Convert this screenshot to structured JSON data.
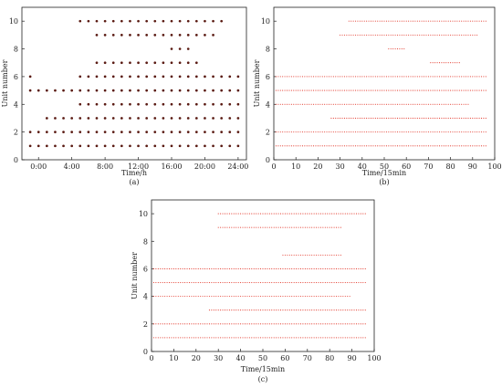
{
  "colors": {
    "dot_dark": "#5a1a12",
    "dot_red": "#e02a1c",
    "dot_light": "#ff8a80",
    "axis": "#222222",
    "blue_dot": "#6fb3ff"
  },
  "chart_data": [
    {
      "type": "scatter",
      "panel_label": "(a)",
      "xlabel": "Time/h",
      "ylabel": "Unit number",
      "xticks": [
        "0:00",
        "4:00",
        "8:00",
        "12:00",
        "16:00",
        "20:00",
        "24:00"
      ],
      "xlim": [
        -2,
        25
      ],
      "yticks": [
        0,
        2,
        4,
        6,
        8,
        10
      ],
      "ylim": [
        0,
        11
      ],
      "series": [
        {
          "unit": 1,
          "on": [
            [
              -1,
              24
            ]
          ]
        },
        {
          "unit": 2,
          "on": [
            [
              -1,
              24
            ]
          ]
        },
        {
          "unit": 3,
          "on": [
            [
              1,
              24
            ]
          ]
        },
        {
          "unit": 4,
          "on": [
            [
              5,
              24
            ]
          ]
        },
        {
          "unit": 5,
          "on": [
            [
              -1,
              24
            ]
          ]
        },
        {
          "unit": 6,
          "on": [
            [
              -1,
              -1
            ],
            [
              5,
              24
            ]
          ]
        },
        {
          "unit": 7,
          "on": [
            [
              7,
              19
            ]
          ]
        },
        {
          "unit": 8,
          "on": [
            [
              16,
              18
            ]
          ]
        },
        {
          "unit": 9,
          "on": [
            [
              7,
              21
            ]
          ]
        },
        {
          "unit": 10,
          "on": [
            [
              5,
              22
            ]
          ]
        }
      ]
    },
    {
      "type": "scatter",
      "panel_label": "(b)",
      "xlabel": "Time/15min",
      "ylabel": "Unit number",
      "xticks": [
        0,
        10,
        20,
        30,
        40,
        50,
        60,
        70,
        80,
        90,
        100
      ],
      "xlim": [
        0,
        100
      ],
      "yticks": [
        0,
        2,
        4,
        6,
        8,
        10
      ],
      "ylim": [
        0,
        11
      ],
      "series": [
        {
          "unit": 1,
          "on": [
            [
              1,
              96
            ]
          ]
        },
        {
          "unit": 2,
          "on": [
            [
              1,
              96
            ]
          ]
        },
        {
          "unit": 3,
          "on": [
            [
              26,
              96
            ]
          ]
        },
        {
          "unit": 4,
          "on": [
            [
              1,
              88
            ]
          ]
        },
        {
          "unit": 5,
          "on": [
            [
              1,
              96
            ]
          ]
        },
        {
          "unit": 6,
          "on": [
            [
              1,
              96
            ]
          ]
        },
        {
          "unit": 7,
          "on": [
            [
              71,
              84
            ]
          ]
        },
        {
          "unit": 8,
          "on": [
            [
              52,
              59
            ]
          ]
        },
        {
          "unit": 9,
          "on": [
            [
              30,
              92
            ]
          ]
        },
        {
          "unit": 10,
          "on": [
            [
              34,
              96
            ]
          ]
        }
      ]
    },
    {
      "type": "scatter",
      "panel_label": "(c)",
      "xlabel": "Time/15min",
      "ylabel": "Unit number",
      "xticks": [
        0,
        10,
        20,
        30,
        40,
        50,
        60,
        70,
        80,
        90,
        100
      ],
      "xlim": [
        0,
        100
      ],
      "yticks": [
        0,
        2,
        4,
        6,
        8,
        10
      ],
      "ylim": [
        0,
        11
      ],
      "series": [
        {
          "unit": 1,
          "on": [
            [
              1,
              96
            ]
          ]
        },
        {
          "unit": 2,
          "on": [
            [
              1,
              96
            ]
          ]
        },
        {
          "unit": 3,
          "on": [
            [
              26,
              96
            ]
          ]
        },
        {
          "unit": 4,
          "on": [
            [
              1,
              89
            ]
          ]
        },
        {
          "unit": 5,
          "on": [
            [
              1,
              96
            ]
          ]
        },
        {
          "unit": 6,
          "on": [
            [
              1,
              96
            ]
          ]
        },
        {
          "unit": 7,
          "on": [
            [
              59,
              85
            ]
          ]
        },
        {
          "unit": 8,
          "on": []
        },
        {
          "unit": 9,
          "on": [
            [
              30,
              85
            ]
          ]
        },
        {
          "unit": 10,
          "on": [
            [
              30,
              96
            ]
          ]
        }
      ]
    }
  ]
}
